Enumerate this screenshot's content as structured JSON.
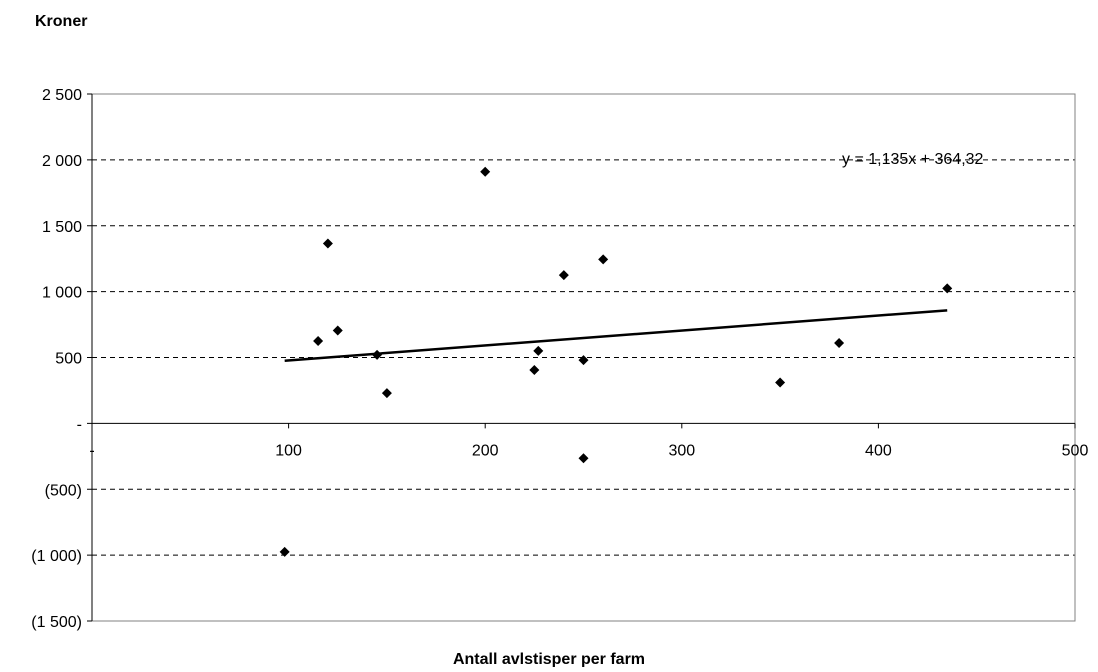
{
  "chart_data": {
    "type": "scatter",
    "ylabel": "Kroner",
    "xlabel": "Antall avlstisper per farm",
    "xlim": [
      0,
      500
    ],
    "ylim": [
      -1500,
      2500
    ],
    "x_ticks": [
      0,
      100,
      200,
      300,
      400,
      500
    ],
    "x_tick_labels": [
      "-",
      "100",
      "200",
      "300",
      "400",
      "500"
    ],
    "y_ticks": [
      2500,
      2000,
      1500,
      1000,
      500,
      0,
      -500,
      -1000,
      -1500
    ],
    "y_tick_labels": [
      "2 500",
      "2 000",
      "1 500",
      "1 000",
      "500",
      "-",
      "(500)",
      "(1 000)",
      "(1 500)"
    ],
    "grid": "horizontal-dashed",
    "marker": "diamond",
    "marker_color": "#000000",
    "points": [
      {
        "x": 98,
        "y": -975
      },
      {
        "x": 115,
        "y": 625
      },
      {
        "x": 120,
        "y": 1365
      },
      {
        "x": 125,
        "y": 705
      },
      {
        "x": 145,
        "y": 520
      },
      {
        "x": 150,
        "y": 230
      },
      {
        "x": 200,
        "y": 1910
      },
      {
        "x": 225,
        "y": 405
      },
      {
        "x": 227,
        "y": 550
      },
      {
        "x": 240,
        "y": 1125
      },
      {
        "x": 250,
        "y": 480
      },
      {
        "x": 250,
        "y": -265
      },
      {
        "x": 260,
        "y": 1245
      },
      {
        "x": 350,
        "y": 310
      },
      {
        "x": 380,
        "y": 610
      },
      {
        "x": 435,
        "y": 1025
      }
    ],
    "trendline": {
      "type": "linear",
      "slope": 1.135,
      "intercept": 364.32,
      "x_range": [
        98,
        435
      ],
      "equation_label": "y = 1,135x + 364,32"
    }
  }
}
